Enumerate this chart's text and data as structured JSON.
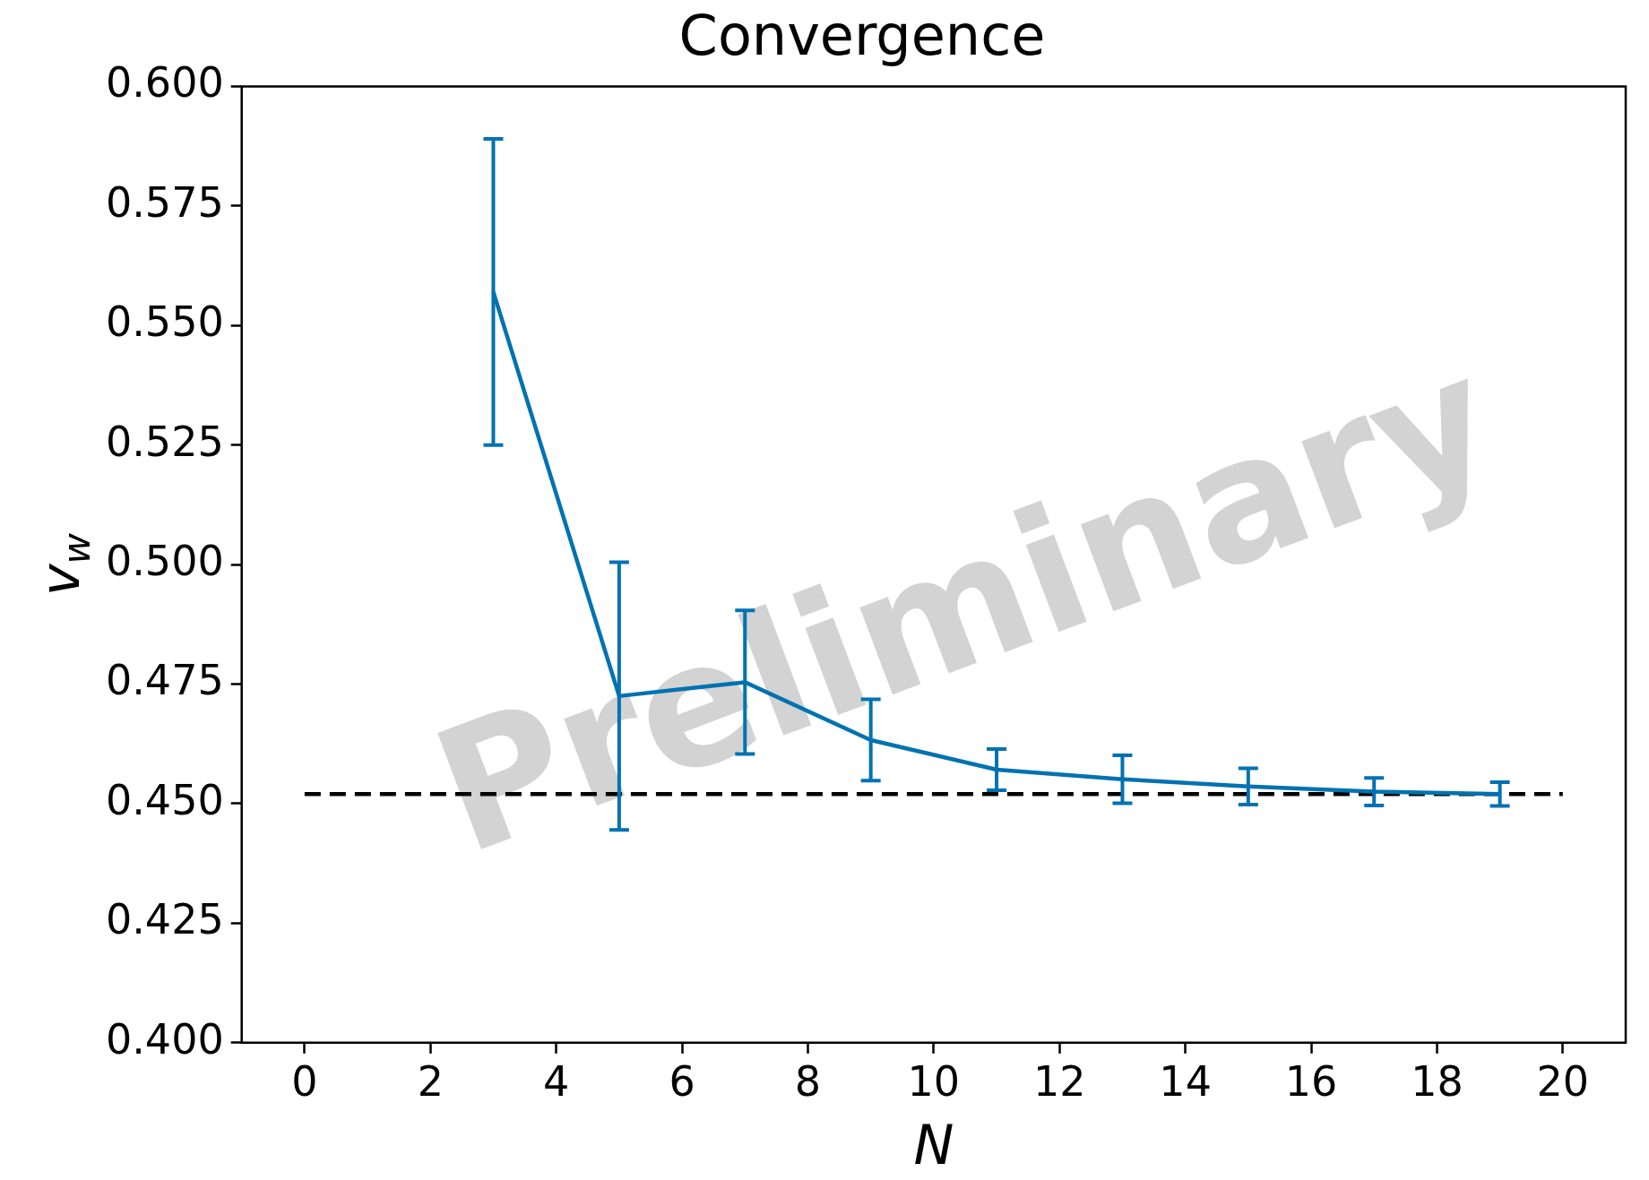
{
  "chart_data": {
    "type": "line",
    "title": "Convergence",
    "xlabel": "N",
    "ylabel": "v$_{w}$",
    "xlim": [
      -1,
      21
    ],
    "xticks": [
      0,
      2,
      4,
      6,
      8,
      10,
      12,
      14,
      16,
      18,
      20
    ],
    "ylim": [
      0.4,
      0.6
    ],
    "yticks": [
      {
        "value": 0.4,
        "label": "0.400"
      },
      {
        "value": 0.425,
        "label": "0.425"
      },
      {
        "value": 0.45,
        "label": "0.450"
      },
      {
        "value": 0.475,
        "label": "0.475"
      },
      {
        "value": 0.5,
        "label": "0.500"
      },
      {
        "value": 0.525,
        "label": "0.525"
      },
      {
        "value": 0.55,
        "label": "0.550"
      },
      {
        "value": 0.575,
        "label": "0.575"
      },
      {
        "value": 0.6,
        "label": "0.600"
      }
    ],
    "grid": false,
    "legend": false,
    "marker": "none",
    "series": [
      {
        "color": "#0072b2",
        "x": [
          3,
          5,
          7,
          9,
          11,
          13,
          15,
          17,
          19
        ],
        "values": [
          0.557,
          0.4725,
          0.4754,
          0.4633,
          0.4571,
          0.4551,
          0.4536,
          0.4525,
          0.452
        ],
        "errors": [
          0.032,
          0.028,
          0.015,
          0.0085,
          0.0043,
          0.005,
          0.0038,
          0.0029,
          0.0025
        ]
      },
      {
        "color": "#000000",
        "line_style": "dashed",
        "x": [
          0,
          20
        ],
        "values": [
          0.452,
          0.452
        ]
      }
    ],
    "annotations": [
      "Preliminary"
    ]
  }
}
